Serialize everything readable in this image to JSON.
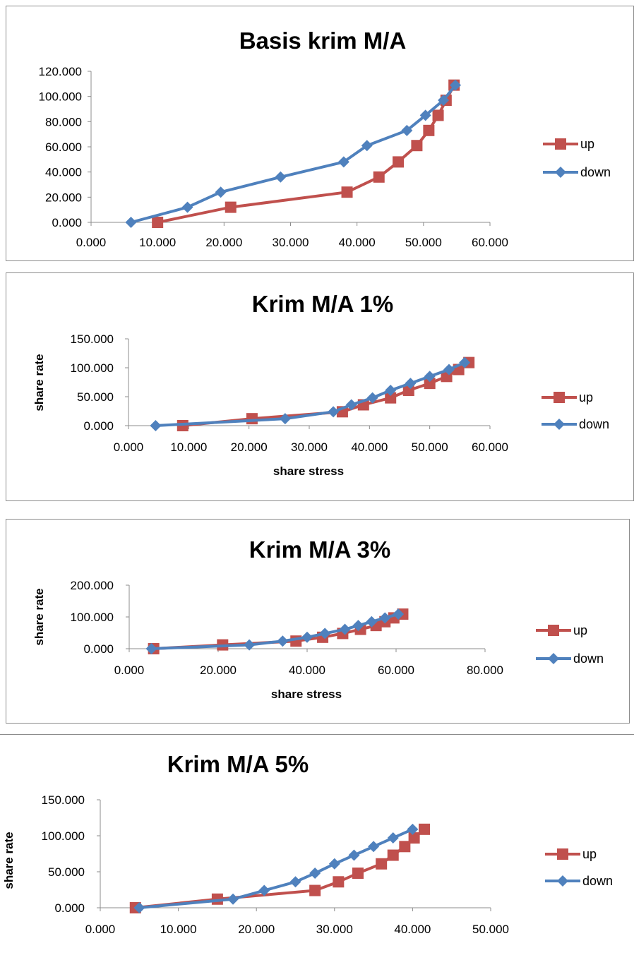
{
  "chart_data": [
    {
      "type": "line",
      "title": "Basis krim M/A",
      "xlabel": "",
      "ylabel": "",
      "xlim": [
        0,
        60
      ],
      "ylim": [
        0,
        120
      ],
      "x_ticks": [
        "0.000",
        "10.000",
        "20.000",
        "30.000",
        "40.000",
        "50.000",
        "60.000"
      ],
      "y_ticks": [
        "0.000",
        "20.000",
        "40.000",
        "60.000",
        "80.000",
        "100.000",
        "120.000"
      ],
      "legend_position": "right",
      "grid": false,
      "series": [
        {
          "name": "up",
          "color": "#c0504d",
          "marker": "square",
          "x": [
            10.0,
            21.0,
            38.5,
            43.3,
            46.2,
            49.0,
            50.8,
            52.2,
            53.4,
            54.6
          ],
          "y": [
            0,
            12,
            24,
            36,
            48,
            61,
            73,
            85,
            97,
            109
          ]
        },
        {
          "name": "down",
          "color": "#4f81bd",
          "marker": "diamond",
          "x": [
            6.0,
            14.5,
            19.5,
            28.5,
            38.0,
            41.5,
            47.5,
            50.3,
            53.0,
            54.8
          ],
          "y": [
            0,
            12,
            24,
            36,
            48,
            61,
            73,
            85,
            97,
            109
          ]
        }
      ]
    },
    {
      "type": "line",
      "title": "Krim M/A 1%",
      "xlabel": "share stress",
      "ylabel": "share rate",
      "xlim": [
        0,
        60
      ],
      "ylim": [
        0,
        150
      ],
      "x_ticks": [
        "0.000",
        "10.000",
        "20.000",
        "30.000",
        "40.000",
        "50.000",
        "60.000"
      ],
      "y_ticks": [
        "0.000",
        "50.000",
        "100.000",
        "150.000"
      ],
      "legend_position": "right",
      "grid": false,
      "series": [
        {
          "name": "up",
          "color": "#c0504d",
          "marker": "square",
          "x": [
            9.0,
            20.5,
            35.5,
            39.0,
            43.5,
            46.5,
            50.0,
            52.8,
            54.8,
            56.5
          ],
          "y": [
            0,
            12,
            24,
            36,
            48,
            61,
            73,
            85,
            97,
            109
          ]
        },
        {
          "name": "down",
          "color": "#4f81bd",
          "marker": "diamond",
          "x": [
            4.5,
            26.0,
            34.0,
            37.0,
            40.5,
            43.5,
            46.8,
            50.0,
            53.2,
            55.8
          ],
          "y": [
            0,
            12,
            24,
            36,
            48,
            61,
            73,
            85,
            97,
            109
          ]
        }
      ]
    },
    {
      "type": "line",
      "title": "Krim M/A 3%",
      "xlabel": "share stress",
      "ylabel": "share rate",
      "xlim": [
        0,
        80
      ],
      "ylim": [
        0,
        200
      ],
      "x_ticks": [
        "0.000",
        "20.000",
        "40.000",
        "60.000",
        "80.000"
      ],
      "y_ticks": [
        "0.000",
        "100.000",
        "200.000"
      ],
      "legend_position": "right",
      "grid": false,
      "series": [
        {
          "name": "up",
          "color": "#c0504d",
          "marker": "square",
          "x": [
            5.5,
            21.0,
            37.5,
            43.5,
            48.0,
            52.0,
            55.5,
            57.5,
            59.5,
            61.5
          ],
          "y": [
            0,
            12,
            24,
            36,
            48,
            61,
            73,
            85,
            97,
            109
          ]
        },
        {
          "name": "down",
          "color": "#4f81bd",
          "marker": "diamond",
          "x": [
            5.0,
            27.0,
            34.5,
            40.0,
            44.0,
            48.5,
            51.5,
            54.5,
            57.5,
            60.5
          ],
          "y": [
            0,
            12,
            24,
            36,
            48,
            61,
            73,
            85,
            97,
            109
          ]
        }
      ]
    },
    {
      "type": "line",
      "title": "Krim M/A 5%",
      "xlabel": "share stress",
      "ylabel": "share rate",
      "xlim": [
        0,
        50
      ],
      "ylim": [
        0,
        150
      ],
      "x_ticks": [
        "0.000",
        "10.000",
        "20.000",
        "30.000",
        "40.000",
        "50.000"
      ],
      "y_ticks": [
        "0.000",
        "50.000",
        "100.000",
        "150.000"
      ],
      "legend_position": "right",
      "grid": false,
      "series": [
        {
          "name": "up",
          "color": "#c0504d",
          "marker": "square",
          "x": [
            4.5,
            15.0,
            27.5,
            30.5,
            33.0,
            36.0,
            37.5,
            39.0,
            40.2,
            41.5
          ],
          "y": [
            0,
            12,
            24,
            36,
            48,
            61,
            73,
            85,
            97,
            109
          ]
        },
        {
          "name": "down",
          "color": "#4f81bd",
          "marker": "diamond",
          "x": [
            5.0,
            17.0,
            21.0,
            25.0,
            27.5,
            30.0,
            32.5,
            35.0,
            37.5,
            40.0
          ],
          "y": [
            0,
            12,
            24,
            36,
            48,
            61,
            73,
            85,
            97,
            109
          ]
        }
      ]
    }
  ]
}
